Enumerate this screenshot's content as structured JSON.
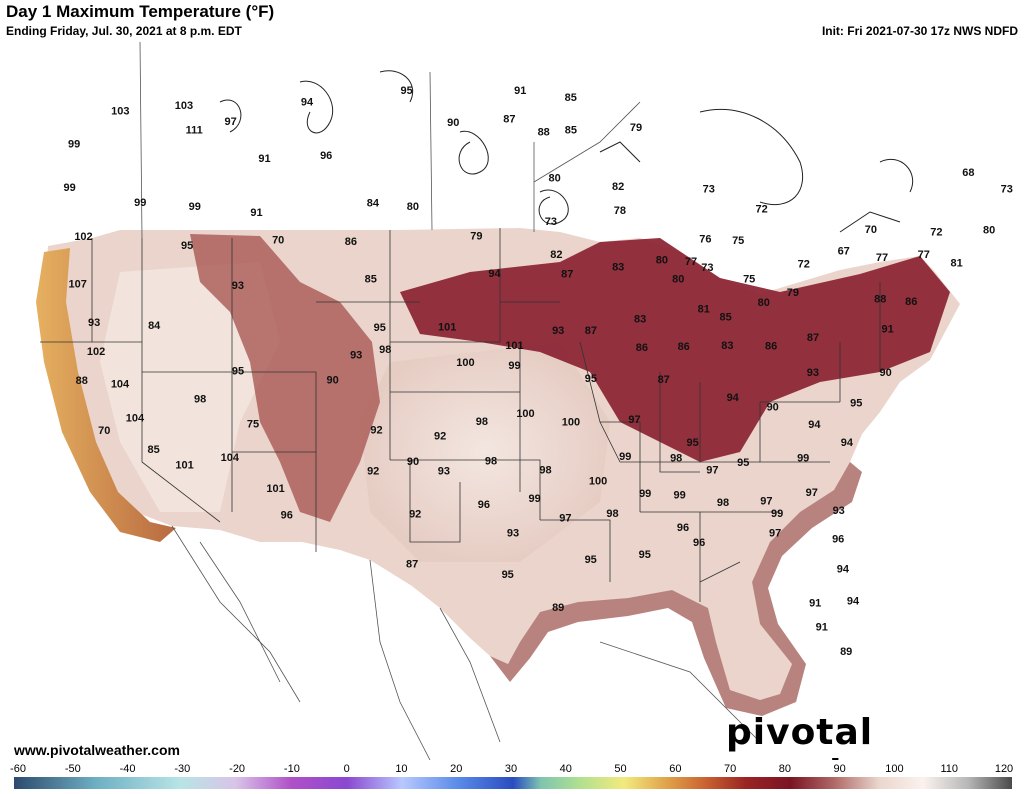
{
  "header": {
    "title": "Day 1 Maximum Temperature (°F)",
    "subtitle": "Ending Friday, Jul. 30, 2021 at 8 p.m. EDT",
    "init": "Init: Fri 2021-07-30 17z NWS NDFD"
  },
  "footer": {
    "website": "www.pivotalweather.com",
    "logo": "pivotal weather"
  },
  "colorbar": {
    "min": -60,
    "max": 120,
    "ticks": [
      "-60",
      "-50",
      "-40",
      "-30",
      "-20",
      "-10",
      "0",
      "10",
      "20",
      "30",
      "40",
      "50",
      "60",
      "70",
      "80",
      "90",
      "100",
      "110",
      "120"
    ],
    "stops": [
      {
        "v": -60,
        "c": "#2d4a6e"
      },
      {
        "v": -45,
        "c": "#6fb0c4"
      },
      {
        "v": -30,
        "c": "#b8e4e6"
      },
      {
        "v": -20,
        "c": "#d8c4e8"
      },
      {
        "v": -10,
        "c": "#b050c8"
      },
      {
        "v": 0,
        "c": "#8a48d0"
      },
      {
        "v": 10,
        "c": "#b8c8ff"
      },
      {
        "v": 20,
        "c": "#5a8ce8"
      },
      {
        "v": 30,
        "c": "#2a4cc0"
      },
      {
        "v": 35,
        "c": "#7ec4b0"
      },
      {
        "v": 42,
        "c": "#b0e090"
      },
      {
        "v": 50,
        "c": "#f2ea7e"
      },
      {
        "v": 58,
        "c": "#e0a048"
      },
      {
        "v": 65,
        "c": "#c86030"
      },
      {
        "v": 72,
        "c": "#9a2424"
      },
      {
        "v": 80,
        "c": "#7a1424"
      },
      {
        "v": 88,
        "c": "#b06a68"
      },
      {
        "v": 96,
        "c": "#ead6cc"
      },
      {
        "v": 104,
        "c": "#fbf2ee"
      },
      {
        "v": 112,
        "c": "#b8b8b8"
      },
      {
        "v": 120,
        "c": "#4a4a4a"
      }
    ]
  },
  "map": {
    "field": "Day 1 Maximum Temperature",
    "units": "°F",
    "labels": [
      {
        "t": "103",
        "lon": -120.3,
        "lat": 46.9
      },
      {
        "t": "103",
        "lon": -116.8,
        "lat": 47.4
      },
      {
        "t": "97",
        "lon": -114.2,
        "lat": 46.8
      },
      {
        "t": "94",
        "lon": -110.0,
        "lat": 47.9
      },
      {
        "t": "95",
        "lon": -104.5,
        "lat": 48.6
      },
      {
        "t": "91",
        "lon": -98.2,
        "lat": 48.7
      },
      {
        "t": "85",
        "lon": -95.4,
        "lat": 48.4
      },
      {
        "t": "111",
        "lon": -116.2,
        "lat": 46.3
      },
      {
        "t": "99",
        "lon": -122.8,
        "lat": 45.2
      },
      {
        "t": "91",
        "lon": -112.3,
        "lat": 45.2
      },
      {
        "t": "96",
        "lon": -108.9,
        "lat": 45.5
      },
      {
        "t": "90",
        "lon": -101.9,
        "lat": 47.2
      },
      {
        "t": "87",
        "lon": -98.8,
        "lat": 47.4
      },
      {
        "t": "88",
        "lon": -96.9,
        "lat": 46.8
      },
      {
        "t": "85",
        "lon": -95.4,
        "lat": 46.9
      },
      {
        "t": "79",
        "lon": -91.8,
        "lat": 47.0
      },
      {
        "t": "99",
        "lon": -123.0,
        "lat": 43.2
      },
      {
        "t": "99",
        "lon": -119.1,
        "lat": 42.8
      },
      {
        "t": "99",
        "lon": -116.1,
        "lat": 42.8
      },
      {
        "t": "91",
        "lon": -112.7,
        "lat": 42.7
      },
      {
        "t": "84",
        "lon": -106.3,
        "lat": 43.4
      },
      {
        "t": "80",
        "lon": -96.3,
        "lat": 44.7
      },
      {
        "t": "82",
        "lon": -92.8,
        "lat": 44.3
      },
      {
        "t": "73",
        "lon": -87.8,
        "lat": 44.1
      },
      {
        "t": "72",
        "lon": -84.9,
        "lat": 43.1
      },
      {
        "t": "68",
        "lon": -73.5,
        "lat": 44.2
      },
      {
        "t": "72",
        "lon": -70.1,
        "lat": 44.9
      },
      {
        "t": "73",
        "lon": -71.4,
        "lat": 43.3
      },
      {
        "t": "102",
        "lon": -122.2,
        "lat": 41.0
      },
      {
        "t": "95",
        "lon": -116.5,
        "lat": 41.0
      },
      {
        "t": "70",
        "lon": -111.5,
        "lat": 41.5
      },
      {
        "t": "86",
        "lon": -107.5,
        "lat": 41.6
      },
      {
        "t": "80",
        "lon": -104.1,
        "lat": 43.3
      },
      {
        "t": "79",
        "lon": -100.6,
        "lat": 42.0
      },
      {
        "t": "73",
        "lon": -96.5,
        "lat": 42.7
      },
      {
        "t": "78",
        "lon": -92.7,
        "lat": 43.2
      },
      {
        "t": "76",
        "lon": -88.0,
        "lat": 41.8
      },
      {
        "t": "75",
        "lon": -86.2,
        "lat": 41.7
      },
      {
        "t": "70",
        "lon": -78.9,
        "lat": 41.9
      },
      {
        "t": "72",
        "lon": -75.3,
        "lat": 41.6
      },
      {
        "t": "80",
        "lon": -72.4,
        "lat": 41.5
      },
      {
        "t": "107",
        "lon": -122.5,
        "lat": 38.8
      },
      {
        "t": "93",
        "lon": -113.7,
        "lat": 39.3
      },
      {
        "t": "85",
        "lon": -106.4,
        "lat": 39.9
      },
      {
        "t": "94",
        "lon": -99.6,
        "lat": 40.3
      },
      {
        "t": "82",
        "lon": -96.2,
        "lat": 41.2
      },
      {
        "t": "87",
        "lon": -95.6,
        "lat": 40.3
      },
      {
        "t": "83",
        "lon": -92.8,
        "lat": 40.6
      },
      {
        "t": "80",
        "lon": -90.4,
        "lat": 40.9
      },
      {
        "t": "77",
        "lon": -88.8,
        "lat": 40.8
      },
      {
        "t": "80",
        "lon": -89.5,
        "lat": 40.0
      },
      {
        "t": "73",
        "lon": -87.9,
        "lat": 40.5
      },
      {
        "t": "75",
        "lon": -85.6,
        "lat": 39.9
      },
      {
        "t": "72",
        "lon": -82.6,
        "lat": 40.5
      },
      {
        "t": "67",
        "lon": -80.4,
        "lat": 41.0
      },
      {
        "t": "77",
        "lon": -78.3,
        "lat": 40.6
      },
      {
        "t": "77",
        "lon": -76.0,
        "lat": 40.6
      },
      {
        "t": "81",
        "lon": -74.2,
        "lat": 40.1
      },
      {
        "t": "93",
        "lon": -121.6,
        "lat": 37.1
      },
      {
        "t": "84",
        "lon": -118.3,
        "lat": 37.2
      },
      {
        "t": "95",
        "lon": -105.9,
        "lat": 37.7
      },
      {
        "t": "101",
        "lon": -102.2,
        "lat": 37.8
      },
      {
        "t": "101",
        "lon": -98.5,
        "lat": 37.0
      },
      {
        "t": "93",
        "lon": -96.1,
        "lat": 37.7
      },
      {
        "t": "87",
        "lon": -94.3,
        "lat": 37.7
      },
      {
        "t": "83",
        "lon": -91.6,
        "lat": 38.2
      },
      {
        "t": "81",
        "lon": -88.1,
        "lat": 38.6
      },
      {
        "t": "85",
        "lon": -86.9,
        "lat": 38.2
      },
      {
        "t": "80",
        "lon": -84.8,
        "lat": 38.8
      },
      {
        "t": "79",
        "lon": -83.2,
        "lat": 39.2
      },
      {
        "t": "88",
        "lon": -78.4,
        "lat": 38.7
      },
      {
        "t": "86",
        "lon": -76.7,
        "lat": 38.5
      },
      {
        "t": "102",
        "lon": -121.5,
        "lat": 35.8
      },
      {
        "t": "93",
        "lon": -107.2,
        "lat": 36.4
      },
      {
        "t": "98",
        "lon": -105.6,
        "lat": 36.7
      },
      {
        "t": "100",
        "lon": -101.2,
        "lat": 36.2
      },
      {
        "t": "99",
        "lon": -98.5,
        "lat": 36.1
      },
      {
        "t": "86",
        "lon": -91.5,
        "lat": 36.9
      },
      {
        "t": "86",
        "lon": -89.2,
        "lat": 36.9
      },
      {
        "t": "83",
        "lon": -86.8,
        "lat": 36.9
      },
      {
        "t": "86",
        "lon": -84.4,
        "lat": 36.8
      },
      {
        "t": "87",
        "lon": -82.1,
        "lat": 37.1
      },
      {
        "t": "91",
        "lon": -78.0,
        "lat": 37.3
      },
      {
        "t": "88",
        "lon": -122.3,
        "lat": 34.4
      },
      {
        "t": "104",
        "lon": -120.2,
        "lat": 34.4
      },
      {
        "t": "95",
        "lon": -113.7,
        "lat": 35.4
      },
      {
        "t": "90",
        "lon": -108.5,
        "lat": 35.2
      },
      {
        "t": "95",
        "lon": -94.3,
        "lat": 35.5
      },
      {
        "t": "87",
        "lon": -90.3,
        "lat": 35.4
      },
      {
        "t": "93",
        "lon": -82.1,
        "lat": 35.5
      },
      {
        "t": "90",
        "lon": -78.1,
        "lat": 35.3
      },
      {
        "t": "98",
        "lon": -115.8,
        "lat": 34.0
      },
      {
        "t": "104",
        "lon": -119.4,
        "lat": 32.9
      },
      {
        "t": "70",
        "lon": -121.1,
        "lat": 32.2
      },
      {
        "t": "75",
        "lon": -112.9,
        "lat": 33.0
      },
      {
        "t": "92",
        "lon": -106.1,
        "lat": 33.0
      },
      {
        "t": "92",
        "lon": -102.6,
        "lat": 32.8
      },
      {
        "t": "100",
        "lon": -97.9,
        "lat": 33.9
      },
      {
        "t": "98",
        "lon": -100.3,
        "lat": 33.5
      },
      {
        "t": "100",
        "lon": -95.4,
        "lat": 33.5
      },
      {
        "t": "97",
        "lon": -91.9,
        "lat": 33.6
      },
      {
        "t": "94",
        "lon": -86.5,
        "lat": 34.5
      },
      {
        "t": "90",
        "lon": -84.3,
        "lat": 34.0
      },
      {
        "t": "94",
        "lon": -82.0,
        "lat": 33.1
      },
      {
        "t": "95",
        "lon": -79.7,
        "lat": 34.0
      },
      {
        "t": "85",
        "lon": -118.4,
        "lat": 31.5
      },
      {
        "t": "101",
        "lon": -116.7,
        "lat": 30.9
      },
      {
        "t": "104",
        "lon": -114.2,
        "lat": 31.4
      },
      {
        "t": "101",
        "lon": -111.7,
        "lat": 30.1
      },
      {
        "t": "90",
        "lon": -104.1,
        "lat": 31.6
      },
      {
        "t": "93",
        "lon": -102.4,
        "lat": 31.2
      },
      {
        "t": "98",
        "lon": -99.8,
        "lat": 31.7
      },
      {
        "t": "98",
        "lon": -96.8,
        "lat": 31.3
      },
      {
        "t": "99",
        "lon": -92.4,
        "lat": 31.9
      },
      {
        "t": "95",
        "lon": -88.7,
        "lat": 32.5
      },
      {
        "t": "98",
        "lon": -89.6,
        "lat": 31.8
      },
      {
        "t": "97",
        "lon": -87.6,
        "lat": 31.2
      },
      {
        "t": "95",
        "lon": -85.9,
        "lat": 31.5
      },
      {
        "t": "99",
        "lon": -82.6,
        "lat": 31.6
      },
      {
        "t": "94",
        "lon": -80.2,
        "lat": 32.2
      },
      {
        "t": "92",
        "lon": -106.3,
        "lat": 31.1
      },
      {
        "t": "96",
        "lon": -111.1,
        "lat": 28.9
      },
      {
        "t": "92",
        "lon": -104.0,
        "lat": 29.2
      },
      {
        "t": "96",
        "lon": -100.2,
        "lat": 29.7
      },
      {
        "t": "99",
        "lon": -97.4,
        "lat": 30.0
      },
      {
        "t": "100",
        "lon": -93.9,
        "lat": 30.8
      },
      {
        "t": "99",
        "lon": -91.3,
        "lat": 30.2
      },
      {
        "t": "99",
        "lon": -89.4,
        "lat": 30.1
      },
      {
        "t": "98",
        "lon": -87.0,
        "lat": 29.7
      },
      {
        "t": "97",
        "lon": -84.6,
        "lat": 29.7
      },
      {
        "t": "97",
        "lon": -82.1,
        "lat": 30.0
      },
      {
        "t": "93",
        "lon": -80.6,
        "lat": 29.1
      },
      {
        "t": "87",
        "lon": -104.2,
        "lat": 26.9
      },
      {
        "t": "93",
        "lon": -98.6,
        "lat": 28.4
      },
      {
        "t": "97",
        "lon": -95.7,
        "lat": 29.1
      },
      {
        "t": "98",
        "lon": -93.1,
        "lat": 29.3
      },
      {
        "t": "96",
        "lon": -89.2,
        "lat": 28.6
      },
      {
        "t": "99",
        "lon": -84.0,
        "lat": 29.1
      },
      {
        "t": "96",
        "lon": -88.3,
        "lat": 27.9
      },
      {
        "t": "97",
        "lon": -84.1,
        "lat": 28.2
      },
      {
        "t": "96",
        "lon": -80.6,
        "lat": 27.8
      },
      {
        "t": "95",
        "lon": -98.9,
        "lat": 26.5
      },
      {
        "t": "95",
        "lon": -94.3,
        "lat": 27.2
      },
      {
        "t": "95",
        "lon": -91.3,
        "lat": 27.4
      },
      {
        "t": "94",
        "lon": -80.3,
        "lat": 26.4
      },
      {
        "t": "89",
        "lon": -96.1,
        "lat": 25.0
      },
      {
        "t": "91",
        "lon": -81.8,
        "lat": 24.9
      },
      {
        "t": "94",
        "lon": -79.7,
        "lat": 24.9
      },
      {
        "t": "91",
        "lon": -81.4,
        "lat": 23.8
      },
      {
        "t": "89",
        "lon": -80.0,
        "lat": 22.6
      }
    ]
  }
}
